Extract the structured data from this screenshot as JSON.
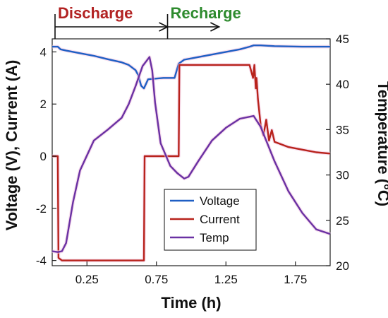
{
  "chart_data": {
    "type": "line",
    "xlabel": "Time (h)",
    "ylabel_left": "Voltage (V), Current (A)",
    "ylabel_right": "Temperature (°C)",
    "xlim": [
      0,
      2.0
    ],
    "ylim_left": [
      -4.2,
      4.5
    ],
    "ylim_right": [
      20,
      45
    ],
    "x_ticks": [
      0.25,
      0.75,
      1.25,
      1.75
    ],
    "y_ticks_left": [
      -4,
      -2,
      0,
      2,
      4
    ],
    "y_ticks_right": [
      20,
      25,
      30,
      35,
      40,
      45
    ],
    "phases": [
      {
        "label": "Discharge",
        "start": 0.0,
        "end": 0.83,
        "color": "#b22222"
      },
      {
        "label": "Recharge",
        "start": 0.83,
        "end": 1.2,
        "color": "#2e8b2e"
      }
    ],
    "legend_position": "lower-center",
    "series": [
      {
        "name": "Voltage",
        "axis": "left",
        "color": "#1f5fc4",
        "x": [
          0,
          0.04,
          0.06,
          0.1,
          0.2,
          0.3,
          0.4,
          0.5,
          0.55,
          0.6,
          0.62,
          0.64,
          0.66,
          0.69,
          0.8,
          0.88,
          0.91,
          0.95,
          1.05,
          1.2,
          1.35,
          1.42,
          1.45,
          1.5,
          1.6,
          1.8,
          2.0
        ],
        "y": [
          4.2,
          4.2,
          4.1,
          4.05,
          3.95,
          3.85,
          3.72,
          3.6,
          3.5,
          3.3,
          3.1,
          2.7,
          2.6,
          2.95,
          3.0,
          3.0,
          3.55,
          3.7,
          3.8,
          3.95,
          4.1,
          4.2,
          4.25,
          4.25,
          4.22,
          4.2,
          4.2
        ]
      },
      {
        "name": "Current",
        "axis": "left",
        "color": "#b8231c",
        "x": [
          0,
          0.04,
          0.045,
          0.07,
          0.66,
          0.665,
          0.91,
          0.915,
          1.42,
          1.445,
          1.455,
          1.465,
          1.47,
          1.48,
          1.5,
          1.52,
          1.54,
          1.56,
          1.58,
          1.6,
          1.65,
          1.7,
          1.8,
          1.9,
          2.0
        ],
        "y": [
          0,
          0,
          -3.9,
          -4.0,
          -4.0,
          0,
          0,
          3.5,
          3.5,
          3.0,
          3.5,
          2.6,
          3.0,
          2.2,
          1.2,
          0.8,
          1.4,
          0.6,
          1.0,
          0.55,
          0.45,
          0.35,
          0.25,
          0.15,
          0.1
        ]
      },
      {
        "name": "Temp",
        "axis": "right",
        "color": "#6a31a3",
        "x": [
          0,
          0.04,
          0.07,
          0.1,
          0.15,
          0.2,
          0.3,
          0.4,
          0.5,
          0.55,
          0.6,
          0.65,
          0.7,
          0.72,
          0.74,
          0.78,
          0.85,
          0.9,
          0.95,
          0.98,
          1.05,
          1.15,
          1.25,
          1.35,
          1.45,
          1.5,
          1.6,
          1.7,
          1.8,
          1.9,
          2.0
        ],
        "y": [
          21.6,
          21.5,
          21.6,
          22.5,
          27,
          30.5,
          33.8,
          35,
          36.3,
          37.8,
          39.8,
          42,
          43.0,
          41.5,
          38.0,
          33.5,
          31,
          30.2,
          29.6,
          29.8,
          31.5,
          33.8,
          35.2,
          36.2,
          36.5,
          35.3,
          31.5,
          28.2,
          25.8,
          24,
          23.5
        ]
      }
    ]
  }
}
